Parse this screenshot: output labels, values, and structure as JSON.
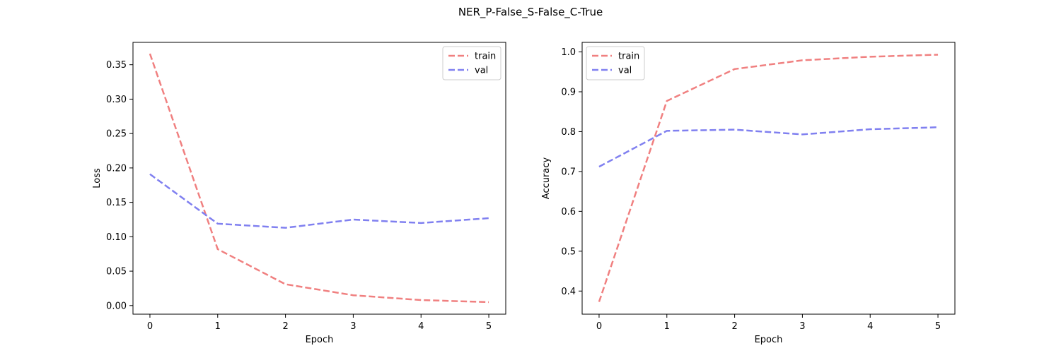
{
  "figure": {
    "suptitle": "NER_P-False_S-False_C-True"
  },
  "chart_data": [
    {
      "type": "line",
      "title": "",
      "xlabel": "Epoch",
      "ylabel": "Loss",
      "x": [
        0,
        1,
        2,
        3,
        4,
        5
      ],
      "xlim": [
        -0.25,
        5.25
      ],
      "ylim": [
        -0.0125,
        0.3825
      ],
      "xticks": [
        0,
        1,
        2,
        3,
        4,
        5
      ],
      "yticks": [
        0.0,
        0.05,
        0.1,
        0.15,
        0.2,
        0.25,
        0.3,
        0.35
      ],
      "ytick_labels": [
        "0.00",
        "0.05",
        "0.10",
        "0.15",
        "0.20",
        "0.25",
        "0.30",
        "0.35"
      ],
      "grid": false,
      "legend": "top-right",
      "series": [
        {
          "name": "train",
          "color": "#f08080",
          "values": [
            0.366,
            0.082,
            0.031,
            0.015,
            0.008,
            0.005
          ]
        },
        {
          "name": "val",
          "color": "#8080f0",
          "values": [
            0.191,
            0.119,
            0.113,
            0.125,
            0.12,
            0.127
          ]
        }
      ]
    },
    {
      "type": "line",
      "title": "",
      "xlabel": "Epoch",
      "ylabel": "Accuracy",
      "x": [
        0,
        1,
        2,
        3,
        4,
        5
      ],
      "xlim": [
        -0.25,
        5.25
      ],
      "ylim": [
        0.342,
        1.024
      ],
      "xticks": [
        0,
        1,
        2,
        3,
        4,
        5
      ],
      "yticks": [
        0.4,
        0.5,
        0.6,
        0.7,
        0.8,
        0.9,
        1.0
      ],
      "ytick_labels": [
        "0.4",
        "0.5",
        "0.6",
        "0.7",
        "0.8",
        "0.9",
        "1.0"
      ],
      "grid": false,
      "legend": "top-left",
      "series": [
        {
          "name": "train",
          "color": "#f08080",
          "values": [
            0.373,
            0.877,
            0.957,
            0.979,
            0.988,
            0.993
          ]
        },
        {
          "name": "val",
          "color": "#8080f0",
          "values": [
            0.712,
            0.802,
            0.805,
            0.793,
            0.806,
            0.811
          ]
        }
      ]
    }
  ]
}
